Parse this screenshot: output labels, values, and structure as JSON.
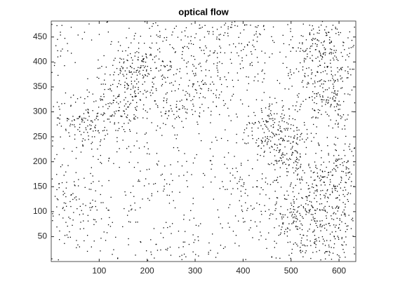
{
  "chart_data": {
    "type": "quiver",
    "title": "optical flow",
    "xlim": [
      0,
      635
    ],
    "xticks": [
      100,
      200,
      300,
      400,
      500,
      600
    ],
    "ylim": [
      0,
      482
    ],
    "yticks": [
      50,
      100,
      150,
      200,
      250,
      300,
      350,
      400,
      450
    ],
    "color": "#000000"
  }
}
